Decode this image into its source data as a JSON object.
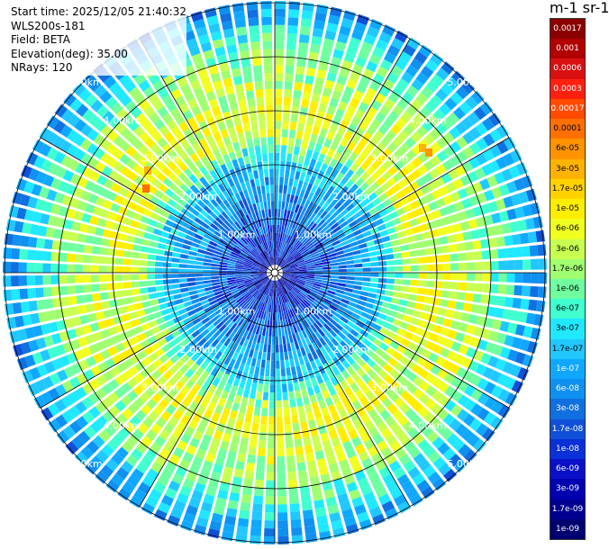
{
  "info": {
    "start_time": "Start time: 2025/12/05 21:40:32",
    "instrument": "WLS200s-181",
    "field": "Field: BETA",
    "elevation": "Elevation(deg): 35.00",
    "nrays": "NRays: 120"
  },
  "plot": {
    "type": "PPI",
    "center": [
      305,
      303
    ],
    "range_labels": [
      "1.00km",
      "2.00km",
      "3.00km",
      "4.00km",
      "5.00km"
    ],
    "n_rays": 120
  },
  "colorbar": {
    "unit_label": "m-1 sr-1",
    "labels": [
      "0.0017",
      "0.001",
      "0.0006",
      "0.0003",
      "0.00017",
      "0.0001",
      "6e-05",
      "3e-05",
      "1.7e-05",
      "1e-05",
      "6e-06",
      "3e-06",
      "1.7e-06",
      "1e-06",
      "6e-07",
      "3e-07",
      "1.7e-07",
      "1e-07",
      "6e-08",
      "3e-08",
      "1.7e-08",
      "1e-08",
      "6e-09",
      "3e-09",
      "1.7e-09",
      "1e-09"
    ],
    "colors": [
      "#8b0000",
      "#b00000",
      "#d81010",
      "#ff2010",
      "#ff4a00",
      "#ff7000",
      "#ff9400",
      "#ffb300",
      "#ffd200",
      "#ffee00",
      "#f0ff20",
      "#c8ff50",
      "#a0ff70",
      "#70ffa0",
      "#40ffd0",
      "#20e8ff",
      "#20c8ff",
      "#10a8ff",
      "#1090f0",
      "#1070e0",
      "#1050d8",
      "#0a30d8",
      "#0a10c8",
      "#0000b0",
      "#000090",
      "#000070"
    ]
  }
}
